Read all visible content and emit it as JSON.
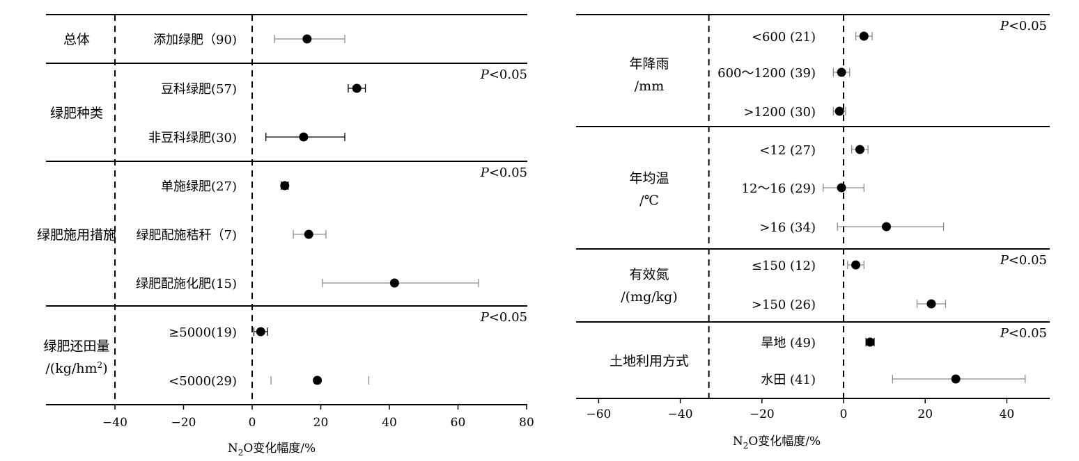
{
  "chart_data": [
    {
      "type": "scatter",
      "subtype": "forest-plot",
      "xlabel": "N₂O变化幅度/%",
      "xlim": [
        -42,
        80
      ],
      "xticks": [
        -40,
        -20,
        0,
        20,
        40,
        60,
        80
      ],
      "ref_lines": [
        -40,
        0
      ],
      "grid": false,
      "groups": [
        {
          "name": "总体",
          "name2": "",
          "pvalue": "",
          "items": [
            {
              "label": "添加绿肥（90)",
              "mean": 16,
              "low": 6.5,
              "high": 27,
              "line": "gray"
            }
          ]
        },
        {
          "name": "绿肥种类",
          "name2": "",
          "pvalue": "P<0.05",
          "items": [
            {
              "label": "豆科绿肥(57)",
              "mean": 30.5,
              "low": 28,
              "high": 33,
              "line": "black"
            },
            {
              "label": "非豆科绿肥(30)",
              "mean": 15,
              "low": 4,
              "high": 27,
              "line": "black"
            }
          ]
        },
        {
          "name": "绿肥施用措施",
          "name2": "",
          "pvalue": "P<0.05",
          "items": [
            {
              "label": "单施绿肥(27)",
              "mean": 9.5,
              "low": 8.5,
              "high": 10.5,
              "line": "black"
            },
            {
              "label": "绿肥配施秸秆（7)",
              "mean": 16.5,
              "low": 12,
              "high": 21.5,
              "line": "gray"
            },
            {
              "label": "绿肥配施化肥(15)",
              "mean": 41.5,
              "low": 20.5,
              "high": 66,
              "line": "gray"
            }
          ]
        },
        {
          "name": "绿肥还田量",
          "name2": "/(kg/hm²)",
          "pvalue": "P<0.05",
          "items": [
            {
              "label": "≥5000(19)",
              "mean": 2.5,
              "low": 0.5,
              "high": 4.5,
              "line": "black"
            },
            {
              "label": "<5000(29)",
              "mean": 19,
              "low": 5.5,
              "high": 34,
              "line": "caps-only"
            }
          ]
        }
      ]
    },
    {
      "type": "scatter",
      "subtype": "forest-plot",
      "xlabel": "N₂O变化幅度/%",
      "xlim": [
        -65,
        50
      ],
      "xticks": [
        -60,
        -40,
        -20,
        0,
        20,
        40
      ],
      "ref_lines": [
        -33,
        0
      ],
      "grid": false,
      "groups": [
        {
          "name": "年降雨",
          "name2": "/mm",
          "pvalue": "P<0.05",
          "items": [
            {
              "label": "<600 (21)",
              "mean": 5,
              "low": 3,
              "high": 7,
              "line": "gray"
            },
            {
              "label": "600～1200 (39)",
              "mean": -0.5,
              "low": -2.5,
              "high": 1.5,
              "line": "gray"
            },
            {
              "label": ">1200 (30)",
              "mean": -1,
              "low": -2.5,
              "high": 0.5,
              "line": "gray"
            }
          ]
        },
        {
          "name": "年均温",
          "name2": "/℃",
          "pvalue": "",
          "items": [
            {
              "label": "<12 (27)",
              "mean": 4,
              "low": 2,
              "high": 6,
              "line": "gray"
            },
            {
              "label": "12～16 (29)",
              "mean": -0.5,
              "low": -5,
              "high": 5,
              "line": "gray"
            },
            {
              "label": ">16 (34)",
              "mean": 10.5,
              "low": -1.5,
              "high": 24.5,
              "line": "gray"
            }
          ]
        },
        {
          "name": "有效氮",
          "name2": "/(mg/kg)",
          "pvalue": "P<0.05",
          "items": [
            {
              "label": "≤150 (12)",
              "mean": 3,
              "low": 1,
              "high": 5,
              "line": "gray"
            },
            {
              "label": ">150 (26)",
              "mean": 21.5,
              "low": 18,
              "high": 25,
              "line": "gray"
            }
          ]
        },
        {
          "name": "土地利用方式",
          "name2": "",
          "pvalue": "P<0.05",
          "items": [
            {
              "label": "旱地 (49)",
              "mean": 6.5,
              "low": 5.5,
              "high": 7.5,
              "line": "black"
            },
            {
              "label": "水田 (41)",
              "mean": 27.5,
              "low": 12,
              "high": 44.5,
              "line": "gray"
            }
          ]
        }
      ]
    }
  ]
}
